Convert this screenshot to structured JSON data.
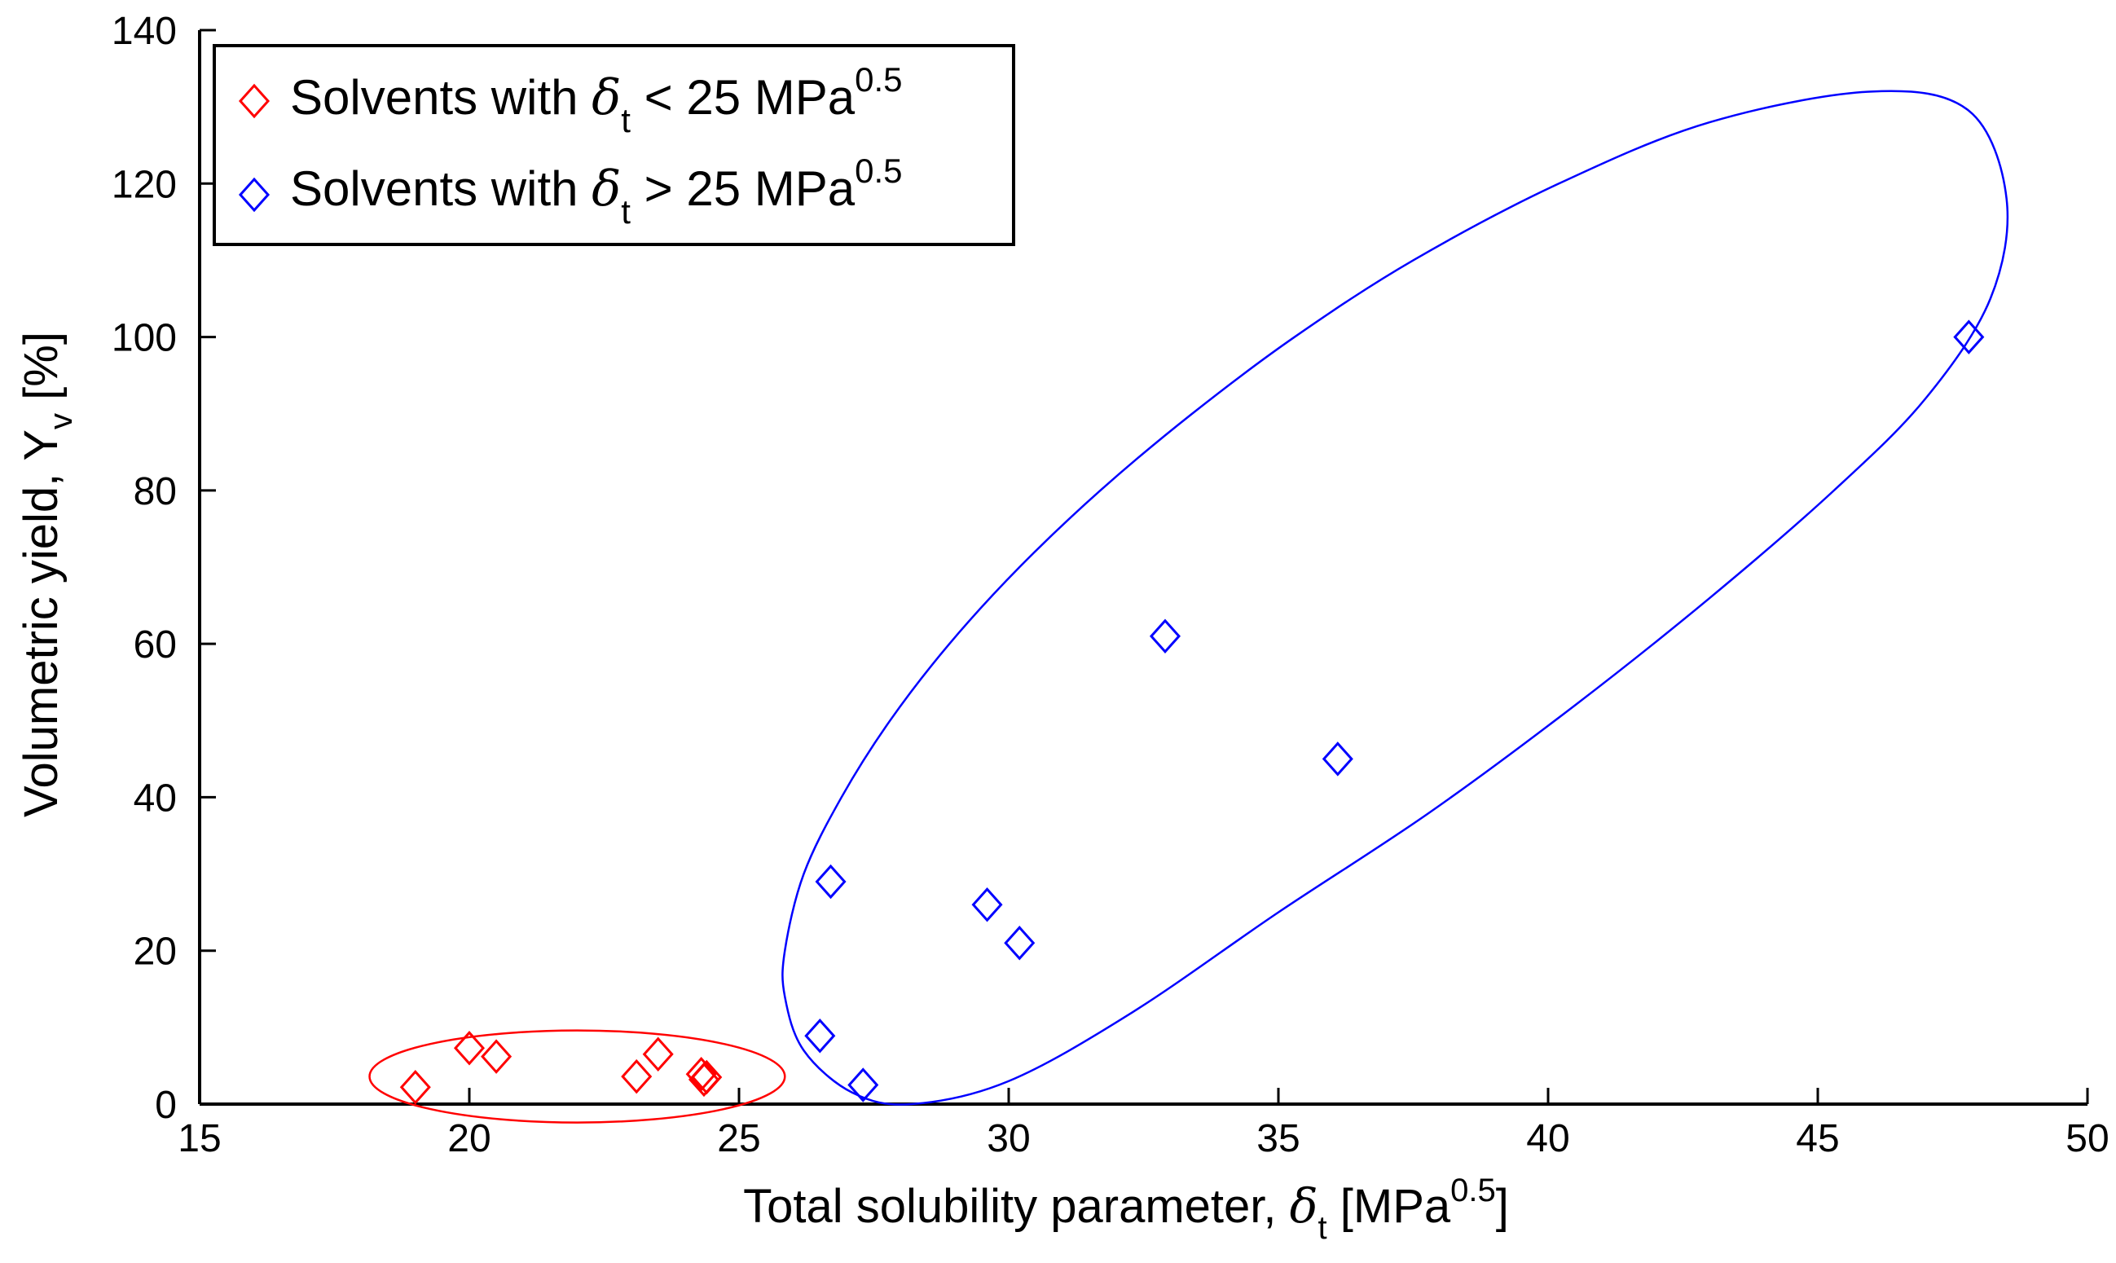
{
  "chart_data": {
    "type": "scatter",
    "xlabel": {
      "prefix": "Total solubility parameter, ",
      "symbol": "δ",
      "subscript": "t",
      "unit_open": " [MPa",
      "unit_power": "0.5",
      "unit_close": "]"
    },
    "ylabel": {
      "prefix": "Volumetric yield, Y",
      "subscript": "v",
      "suffix": " [%]"
    },
    "xlim": [
      15,
      50
    ],
    "ylim": [
      0,
      140
    ],
    "xticks": [
      "15",
      "20",
      "25",
      "30",
      "35",
      "40",
      "45",
      "50"
    ],
    "yticks": [
      "0",
      "20",
      "40",
      "60",
      "80",
      "100",
      "120",
      "140"
    ],
    "legend_position": "top-left",
    "grid": false,
    "series": [
      {
        "name": "Solvents with δt < 25 MPa^0.5",
        "legend": {
          "prefix": "Solvents with ",
          "symbol": "δ",
          "subscript": "t",
          "rel": " < 25 MPa",
          "power": "0.5"
        },
        "color": "#ff0000",
        "marker": "diamond",
        "points": [
          [
            19.0,
            2.2
          ],
          [
            20.0,
            7.3
          ],
          [
            20.5,
            6.2
          ],
          [
            23.1,
            3.6
          ],
          [
            23.5,
            6.5
          ],
          [
            24.3,
            3.9
          ],
          [
            24.35,
            3.2
          ],
          [
            24.4,
            3.5
          ]
        ],
        "ellipse": {
          "cx": 22.0,
          "cy": 3.6,
          "rx": 3.85,
          "ry": 6.0,
          "angle_deg": 0
        }
      },
      {
        "name": "Solvents with δt > 25 MPa^0.5",
        "legend": {
          "prefix": "Solvents with ",
          "symbol": "δ",
          "subscript": "t",
          "rel": " > 25 MPa",
          "power": "0.5"
        },
        "color": "#0000ff",
        "marker": "diamond",
        "points": [
          [
            26.5,
            8.9
          ],
          [
            26.7,
            29.0
          ],
          [
            27.3,
            2.5
          ],
          [
            29.6,
            26.0
          ],
          [
            30.2,
            21.0
          ],
          [
            32.9,
            61.0
          ],
          [
            36.1,
            45.0
          ],
          [
            47.8,
            100.0
          ]
        ],
        "ellipse": {
          "poly": [
            [
              25.85,
              20.0
            ],
            [
              26.2,
              30.0
            ],
            [
              26.9,
              40.0
            ],
            [
              27.8,
              50.0
            ],
            [
              28.9,
              60.0
            ],
            [
              30.2,
              70.0
            ],
            [
              31.7,
              80.0
            ],
            [
              33.4,
              90.0
            ],
            [
              35.3,
              100.0
            ],
            [
              37.5,
              110.0
            ],
            [
              40.2,
              120.0
            ],
            [
              43.0,
              128.0
            ],
            [
              46.0,
              132.0
            ],
            [
              47.8,
              129.5
            ],
            [
              48.5,
              118.0
            ],
            [
              48.2,
              105.0
            ],
            [
              47.0,
              92.0
            ],
            [
              45.3,
              80.0
            ],
            [
              43.0,
              66.0
            ],
            [
              40.5,
              52.0
            ],
            [
              37.8,
              38.0
            ],
            [
              35.0,
              25.0
            ],
            [
              32.3,
              12.0
            ],
            [
              30.0,
              3.0
            ],
            [
              28.2,
              0.0
            ],
            [
              27.1,
              1.5
            ],
            [
              26.2,
              7.0
            ],
            [
              25.85,
              14.0
            ],
            [
              25.85,
              20.0
            ]
          ]
        }
      }
    ]
  }
}
